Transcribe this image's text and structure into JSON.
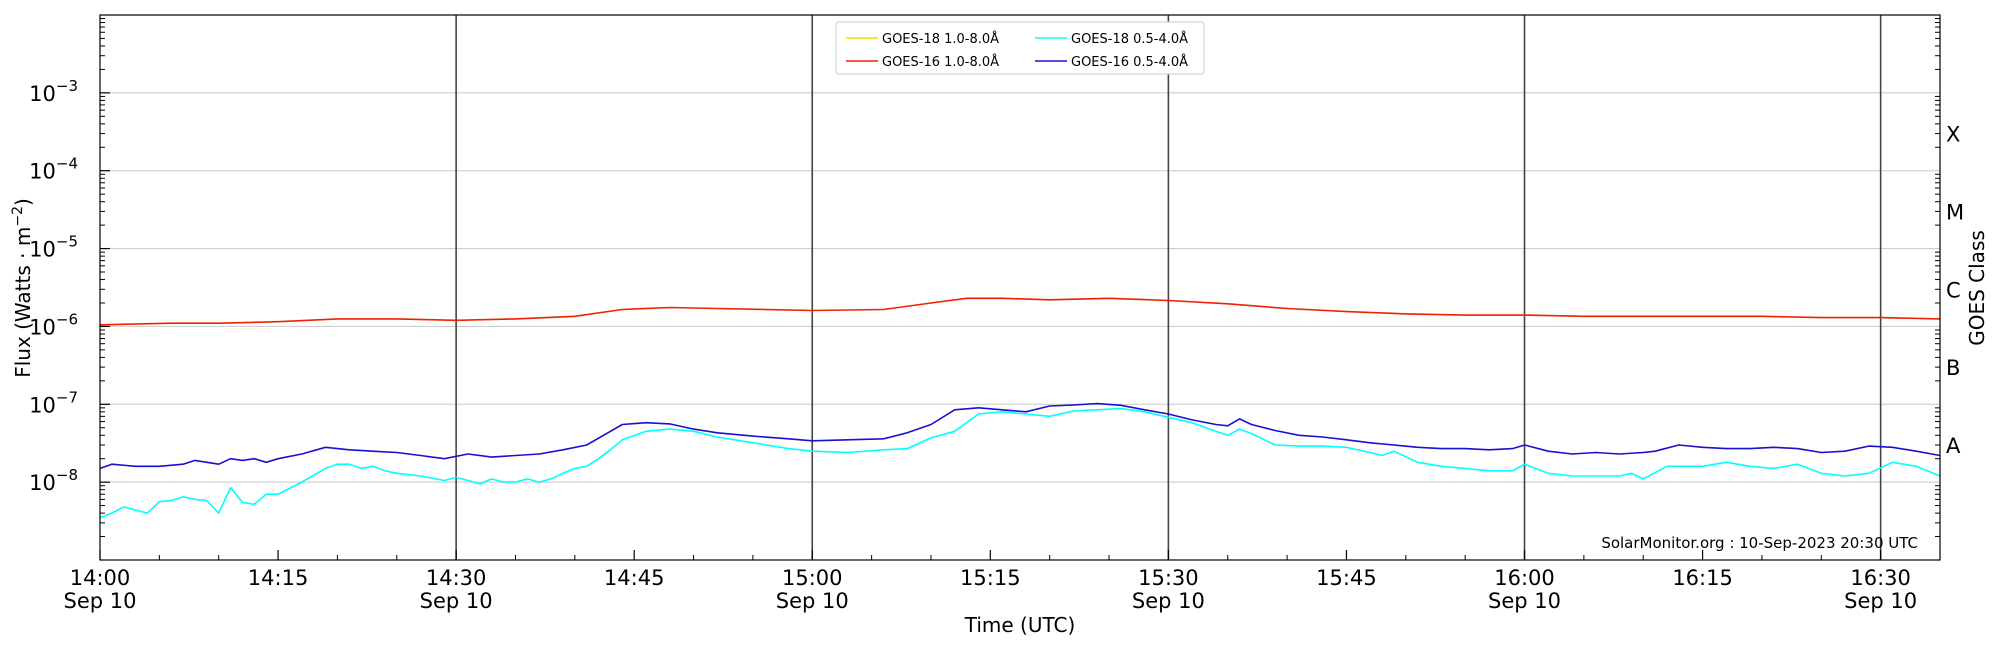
{
  "chart_data": {
    "type": "line",
    "ylog": true,
    "xlim": [
      "14:00",
      "16:35"
    ],
    "ylim": [
      1e-09,
      0.01
    ],
    "xlabel": "Time (UTC)",
    "ylabel_main": "Flux (Watts · m",
    "ylabel_sup": "−2",
    "ylabel_close": ")",
    "right_label": "GOES Class",
    "credit": "SolarMonitor.org : 10-Sep-2023 20:30 UTC",
    "grid": "horizontal",
    "legend_position": "top-center",
    "x_ticks": [
      {
        "t": "14:00",
        "label": "14:00",
        "sub": "Sep 10"
      },
      {
        "t": "14:15",
        "label": "14:15",
        "sub": ""
      },
      {
        "t": "14:30",
        "label": "14:30",
        "sub": "Sep 10"
      },
      {
        "t": "14:45",
        "label": "14:45",
        "sub": ""
      },
      {
        "t": "15:00",
        "label": "15:00",
        "sub": "Sep 10"
      },
      {
        "t": "15:15",
        "label": "15:15",
        "sub": ""
      },
      {
        "t": "15:30",
        "label": "15:30",
        "sub": "Sep 10"
      },
      {
        "t": "15:45",
        "label": "15:45",
        "sub": ""
      },
      {
        "t": "16:00",
        "label": "16:00",
        "sub": "Sep 10"
      },
      {
        "t": "16:15",
        "label": "16:15",
        "sub": ""
      },
      {
        "t": "16:30",
        "label": "16:30",
        "sub": "Sep 10"
      }
    ],
    "vlines": [
      "14:30",
      "15:00",
      "15:30",
      "16:00",
      "16:30"
    ],
    "y_ticks": [
      {
        "exp": -8,
        "label": "10",
        "sup": "−8"
      },
      {
        "exp": -7,
        "label": "10",
        "sup": "−7"
      },
      {
        "exp": -6,
        "label": "10",
        "sup": "−6"
      },
      {
        "exp": -5,
        "label": "10",
        "sup": "−5"
      },
      {
        "exp": -4,
        "label": "10",
        "sup": "−4"
      },
      {
        "exp": -3,
        "label": "10",
        "sup": "−3"
      }
    ],
    "goes_classes": [
      {
        "label": "A",
        "at": 3e-08
      },
      {
        "label": "B",
        "at": 3e-07
      },
      {
        "label": "C",
        "at": 3e-06
      },
      {
        "label": "M",
        "at": 3e-05
      },
      {
        "label": "X",
        "at": 0.0003
      }
    ],
    "legend": [
      {
        "name": "GOES-18 1.0-8.0Å",
        "color": "#ffd700"
      },
      {
        "name": "GOES-18 0.5-4.0Å",
        "color": "#00ffff"
      },
      {
        "name": "GOES-16 1.0-8.0Å",
        "color": "#ee2200"
      },
      {
        "name": "GOES-16 0.5-4.0Å",
        "color": "#1a10d0"
      }
    ],
    "series": [
      {
        "name": "GOES-16 1.0-8.0Å",
        "color": "#ee2200",
        "x": [
          "14:00",
          "14:06",
          "14:10",
          "14:15",
          "14:20",
          "14:25",
          "14:30",
          "14:35",
          "14:40",
          "14:44",
          "14:48",
          "14:52",
          "15:00",
          "15:06",
          "15:10",
          "15:13",
          "15:16",
          "15:20",
          "15:25",
          "15:30",
          "15:35",
          "15:40",
          "15:45",
          "15:50",
          "15:55",
          "16:00",
          "16:05",
          "16:10",
          "16:15",
          "16:20",
          "16:25",
          "16:30",
          "16:35"
        ],
        "y": [
          1.05e-06,
          1.1e-06,
          1.1e-06,
          1.15e-06,
          1.25e-06,
          1.25e-06,
          1.2e-06,
          1.25e-06,
          1.35e-06,
          1.65e-06,
          1.75e-06,
          1.7e-06,
          1.6e-06,
          1.65e-06,
          2e-06,
          2.3e-06,
          2.3e-06,
          2.2e-06,
          2.3e-06,
          2.15e-06,
          1.95e-06,
          1.7e-06,
          1.55e-06,
          1.45e-06,
          1.4e-06,
          1.4e-06,
          1.35e-06,
          1.35e-06,
          1.35e-06,
          1.35e-06,
          1.3e-06,
          1.3e-06,
          1.25e-06
        ]
      },
      {
        "name": "GOES-16 0.5-4.0Å",
        "color": "#1a10d0",
        "x": [
          "14:00",
          "14:01",
          "14:03",
          "14:05",
          "14:07",
          "14:08",
          "14:10",
          "14:11",
          "14:12",
          "14:13",
          "14:14",
          "14:15",
          "14:17",
          "14:19",
          "14:21",
          "14:23",
          "14:25",
          "14:27",
          "14:29",
          "14:31",
          "14:33",
          "14:35",
          "14:37",
          "14:39",
          "14:41",
          "14:43",
          "14:44",
          "14:46",
          "14:48",
          "14:50",
          "14:52",
          "14:55",
          "14:58",
          "15:00",
          "15:03",
          "15:06",
          "15:08",
          "15:10",
          "15:12",
          "15:14",
          "15:16",
          "15:18",
          "15:20",
          "15:22",
          "15:24",
          "15:26",
          "15:28",
          "15:30",
          "15:32",
          "15:34",
          "15:35",
          "15:36",
          "15:37",
          "15:39",
          "15:41",
          "15:43",
          "15:45",
          "15:47",
          "15:49",
          "15:51",
          "15:53",
          "15:55",
          "15:57",
          "15:59",
          "16:00",
          "16:02",
          "16:04",
          "16:06",
          "16:08",
          "16:10",
          "16:11",
          "16:13",
          "16:15",
          "16:17",
          "16:19",
          "16:21",
          "16:23",
          "16:25",
          "16:27",
          "16:29",
          "16:31",
          "16:33",
          "16:35"
        ],
        "y": [
          1.5e-08,
          1.7e-08,
          1.6e-08,
          1.6e-08,
          1.7e-08,
          1.9e-08,
          1.7e-08,
          2e-08,
          1.9e-08,
          2e-08,
          1.8e-08,
          2e-08,
          2.3e-08,
          2.8e-08,
          2.6e-08,
          2.5e-08,
          2.4e-08,
          2.2e-08,
          2e-08,
          2.3e-08,
          2.1e-08,
          2.2e-08,
          2.3e-08,
          2.6e-08,
          3e-08,
          4.5e-08,
          5.5e-08,
          5.8e-08,
          5.6e-08,
          4.8e-08,
          4.3e-08,
          3.9e-08,
          3.6e-08,
          3.4e-08,
          3.5e-08,
          3.6e-08,
          4.3e-08,
          5.5e-08,
          8.5e-08,
          9e-08,
          8.5e-08,
          8e-08,
          9.5e-08,
          9.8e-08,
          1.02e-07,
          9.7e-08,
          8.5e-08,
          7.5e-08,
          6.3e-08,
          5.5e-08,
          5.3e-08,
          6.5e-08,
          5.5e-08,
          4.6e-08,
          4e-08,
          3.8e-08,
          3.5e-08,
          3.2e-08,
          3e-08,
          2.8e-08,
          2.7e-08,
          2.7e-08,
          2.6e-08,
          2.7e-08,
          3e-08,
          2.5e-08,
          2.3e-08,
          2.4e-08,
          2.3e-08,
          2.4e-08,
          2.5e-08,
          3e-08,
          2.8e-08,
          2.7e-08,
          2.7e-08,
          2.8e-08,
          2.7e-08,
          2.4e-08,
          2.5e-08,
          2.9e-08,
          2.8e-08,
          2.5e-08,
          2.2e-08
        ]
      },
      {
        "name": "GOES-18 0.5-4.0Å",
        "color": "#00ffff",
        "x": [
          "14:00",
          "14:01",
          "14:02",
          "14:04",
          "14:05",
          "14:06",
          "14:07",
          "14:08",
          "14:09",
          "14:10",
          "14:11",
          "14:12",
          "14:13",
          "14:14",
          "14:15",
          "14:17",
          "14:19",
          "14:20",
          "14:21",
          "14:22",
          "14:23",
          "14:24",
          "14:25",
          "14:27",
          "14:29",
          "14:30",
          "14:31",
          "14:32",
          "14:33",
          "14:34",
          "14:35",
          "14:36",
          "14:37",
          "14:38",
          "14:39",
          "14:40",
          "14:41",
          "14:42",
          "14:43",
          "14:44",
          "14:46",
          "14:48",
          "14:50",
          "14:52",
          "14:55",
          "14:58",
          "15:00",
          "15:03",
          "15:06",
          "15:08",
          "15:10",
          "15:12",
          "15:14",
          "15:16",
          "15:18",
          "15:20",
          "15:22",
          "15:24",
          "15:26",
          "15:28",
          "15:30",
          "15:32",
          "15:34",
          "15:35",
          "15:36",
          "15:37",
          "15:39",
          "15:41",
          "15:43",
          "15:45",
          "15:47",
          "15:48",
          "15:49",
          "15:51",
          "15:53",
          "15:55",
          "15:57",
          "15:59",
          "16:00",
          "16:02",
          "16:04",
          "16:06",
          "16:08",
          "16:09",
          "16:10",
          "16:12",
          "16:13",
          "16:15",
          "16:17",
          "16:19",
          "16:21",
          "16:23",
          "16:25",
          "16:27",
          "16:29",
          "16:31",
          "16:33",
          "16:35"
        ],
        "y": [
          3.5e-09,
          4e-09,
          4.8e-09,
          4e-09,
          5.6e-09,
          5.8e-09,
          6.5e-09,
          6e-09,
          5.8e-09,
          4e-09,
          8.5e-09,
          5.5e-09,
          5.2e-09,
          7e-09,
          7e-09,
          1e-08,
          1.5e-08,
          1.7e-08,
          1.7e-08,
          1.5e-08,
          1.6e-08,
          1.4e-08,
          1.3e-08,
          1.2e-08,
          1.05e-08,
          1.15e-08,
          1.05e-08,
          9.5e-09,
          1.1e-08,
          1e-08,
          1e-08,
          1.1e-08,
          1e-08,
          1.1e-08,
          1.3e-08,
          1.5e-08,
          1.6e-08,
          2e-08,
          2.6e-08,
          3.5e-08,
          4.5e-08,
          4.8e-08,
          4.5e-08,
          3.8e-08,
          3.2e-08,
          2.7e-08,
          2.5e-08,
          2.4e-08,
          2.6e-08,
          2.7e-08,
          3.7e-08,
          4.5e-08,
          7.5e-08,
          8e-08,
          7.5e-08,
          7e-08,
          8.2e-08,
          8.5e-08,
          8.8e-08,
          8e-08,
          6.8e-08,
          5.8e-08,
          4.5e-08,
          4e-08,
          4.8e-08,
          4.2e-08,
          3e-08,
          2.9e-08,
          2.9e-08,
          2.8e-08,
          2.4e-08,
          2.2e-08,
          2.5e-08,
          1.8e-08,
          1.6e-08,
          1.5e-08,
          1.4e-08,
          1.4e-08,
          1.7e-08,
          1.3e-08,
          1.2e-08,
          1.2e-08,
          1.2e-08,
          1.3e-08,
          1.1e-08,
          1.6e-08,
          1.6e-08,
          1.6e-08,
          1.8e-08,
          1.6e-08,
          1.5e-08,
          1.7e-08,
          1.3e-08,
          1.2e-08,
          1.3e-08,
          1.8e-08,
          1.6e-08,
          1.2e-08
        ]
      }
    ]
  }
}
